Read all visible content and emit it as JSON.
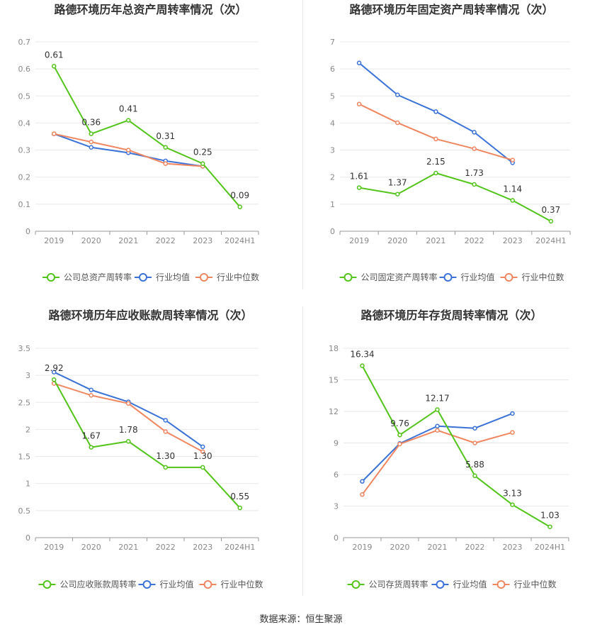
{
  "source": "数据来源：恒生聚源",
  "colors": {
    "company": "#52c41a",
    "avg": "#3a72d8",
    "median": "#f08660"
  },
  "chart_data": [
    {
      "type": "line",
      "title": "路德环境历年总资产周转率情况（次）",
      "categories": [
        "2019",
        "2020",
        "2021",
        "2022",
        "2023",
        "2024H1"
      ],
      "ylim": [
        0,
        0.7
      ],
      "yticks": [
        "0",
        "0.1",
        "0.2",
        "0.3",
        "0.4",
        "0.5",
        "0.6",
        "0.7"
      ],
      "legend": [
        "公司总资产周转率",
        "行业均值",
        "行业中位数"
      ],
      "series": [
        {
          "name": "公司总资产周转率",
          "values": [
            0.61,
            0.36,
            0.41,
            0.31,
            0.25,
            0.09
          ],
          "labels": [
            "0.61",
            "0.36",
            "0.41",
            "0.31",
            "0.25",
            "0.09"
          ]
        },
        {
          "name": "行业均值",
          "values": [
            0.36,
            0.31,
            0.29,
            0.26,
            0.24,
            null
          ]
        },
        {
          "name": "行业中位数",
          "values": [
            0.36,
            0.33,
            0.3,
            0.25,
            0.24,
            null
          ]
        }
      ]
    },
    {
      "type": "line",
      "title": "路德环境历年固定资产周转率情况（次）",
      "categories": [
        "2019",
        "2020",
        "2021",
        "2022",
        "2023",
        "2024H1"
      ],
      "ylim": [
        0,
        7
      ],
      "yticks": [
        "0",
        "1",
        "2",
        "3",
        "4",
        "5",
        "6",
        "7"
      ],
      "legend": [
        "公司固定资产周转率",
        "行业均值",
        "行业中位数"
      ],
      "series": [
        {
          "name": "公司固定资产周转率",
          "values": [
            1.61,
            1.37,
            2.15,
            1.73,
            1.14,
            0.37
          ],
          "labels": [
            "1.61",
            "1.37",
            "2.15",
            "1.73",
            "1.14",
            "0.37"
          ]
        },
        {
          "name": "行业均值",
          "values": [
            6.22,
            5.04,
            4.42,
            3.66,
            2.53,
            null
          ]
        },
        {
          "name": "行业中位数",
          "values": [
            4.7,
            4.01,
            3.41,
            3.05,
            2.63,
            null
          ]
        }
      ]
    },
    {
      "type": "line",
      "title": "路德环境历年应收账款周转率情况（次）",
      "categories": [
        "2019",
        "2020",
        "2021",
        "2022",
        "2023",
        "2024H1"
      ],
      "ylim": [
        0,
        3.5
      ],
      "yticks": [
        "0",
        "0.5",
        "1",
        "1.5",
        "2",
        "2.5",
        "3",
        "3.5"
      ],
      "legend": [
        "公司应收账款周转率",
        "行业均值",
        "行业中位数"
      ],
      "series": [
        {
          "name": "公司应收账款周转率",
          "values": [
            2.92,
            1.67,
            1.78,
            1.3,
            1.3,
            0.55
          ],
          "labels": [
            "2.92",
            "1.67",
            "1.78",
            "1.30",
            "1.30",
            "0.55"
          ]
        },
        {
          "name": "行业均值",
          "values": [
            3.06,
            2.73,
            2.51,
            2.17,
            1.68,
            null
          ]
        },
        {
          "name": "行业中位数",
          "values": [
            2.85,
            2.63,
            2.48,
            1.96,
            1.59,
            null
          ]
        }
      ]
    },
    {
      "type": "line",
      "title": "路德环境历年存货周转率情况（次）",
      "categories": [
        "2019",
        "2020",
        "2021",
        "2022",
        "2023",
        "2024H1"
      ],
      "ylim": [
        0,
        18
      ],
      "yticks": [
        "0",
        "3",
        "6",
        "9",
        "12",
        "15",
        "18"
      ],
      "legend": [
        "公司存货周转率",
        "行业均值",
        "行业中位数"
      ],
      "series": [
        {
          "name": "公司存货周转率",
          "values": [
            16.34,
            9.76,
            12.17,
            5.88,
            3.13,
            1.03
          ],
          "labels": [
            "16.34",
            "9.76",
            "12.17",
            "5.88",
            "3.13",
            "1.03"
          ]
        },
        {
          "name": "行业均值",
          "values": [
            5.35,
            8.95,
            10.6,
            10.4,
            11.8,
            null
          ]
        },
        {
          "name": "行业中位数",
          "values": [
            4.1,
            8.9,
            10.2,
            9.0,
            10.0,
            null
          ]
        }
      ]
    }
  ]
}
